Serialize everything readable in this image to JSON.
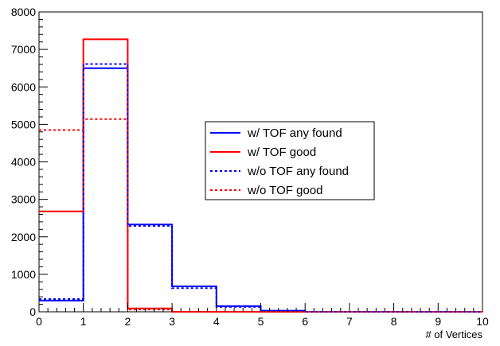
{
  "chart_data": {
    "type": "line",
    "title": "",
    "xlabel": "# of Vertices",
    "ylabel": "",
    "xlim": [
      0,
      10
    ],
    "ylim": [
      0,
      8000
    ],
    "x_bin_edges": [
      0,
      1,
      2,
      3,
      4,
      5,
      6,
      7,
      8,
      9,
      10
    ],
    "x_ticks": [
      "0",
      "1",
      "2",
      "3",
      "4",
      "5",
      "6",
      "7",
      "8",
      "9",
      "10"
    ],
    "y_ticks": [
      "0",
      "1000",
      "2000",
      "3000",
      "4000",
      "5000",
      "6000",
      "7000",
      "8000"
    ],
    "grid": false,
    "legend_position": "center",
    "series": [
      {
        "name": "w/ TOF any found",
        "color": "#0000ff",
        "dashed": false,
        "values": [
          300,
          6500,
          2330,
          680,
          150,
          30,
          0,
          0,
          0,
          0
        ]
      },
      {
        "name": "w/ TOF good",
        "color": "#ff0000",
        "dashed": false,
        "values": [
          2680,
          7270,
          90,
          0,
          0,
          0,
          0,
          0,
          0,
          0
        ]
      },
      {
        "name": "w/o TOF any found",
        "color": "#0000ff",
        "dashed": true,
        "values": [
          340,
          6610,
          2290,
          630,
          130,
          25,
          0,
          0,
          0,
          0
        ]
      },
      {
        "name": "w/o TOF good",
        "color": "#ff0000",
        "dashed": true,
        "values": [
          4850,
          5140,
          60,
          0,
          0,
          0,
          0,
          0,
          0,
          0
        ]
      }
    ]
  }
}
